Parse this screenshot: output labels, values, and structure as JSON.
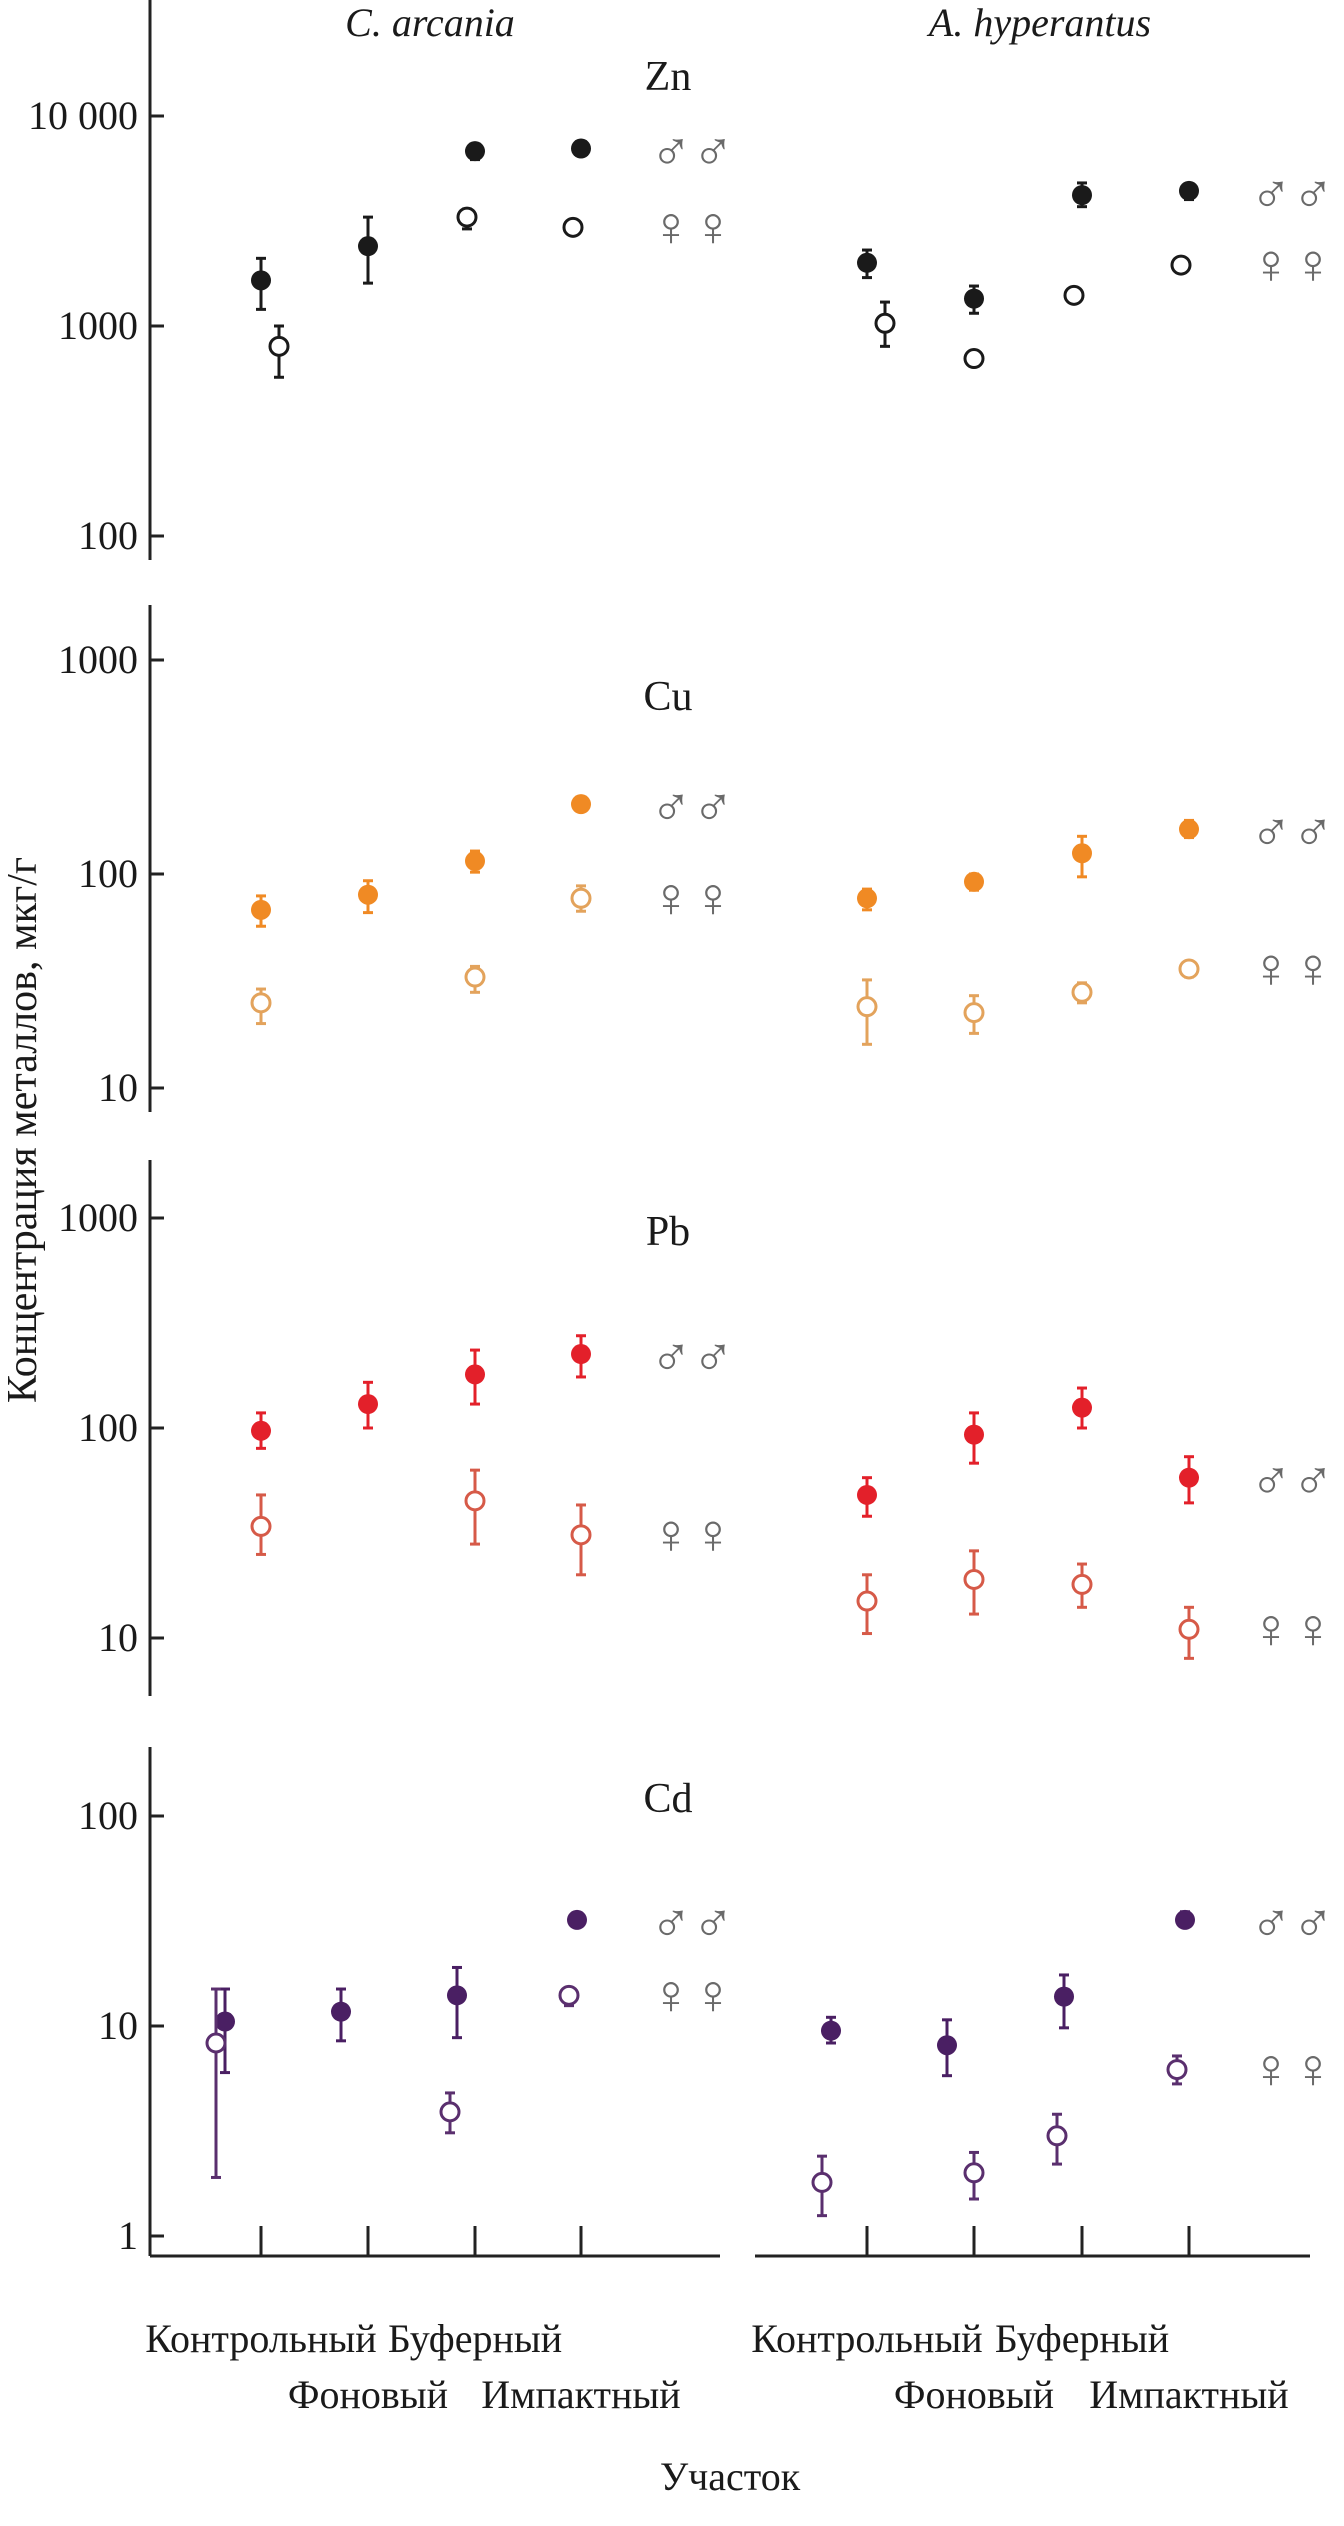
{
  "chart_data": {
    "type": "scatter",
    "title": "",
    "ylabel": "Концентрация металлов, мкг/г",
    "xlabel": "Участок",
    "yscale": "log",
    "species": [
      "C. arcania",
      "A. hyperantus"
    ],
    "categories": [
      "Контрольный",
      "Фоновый",
      "Буферный",
      "Импактный"
    ],
    "legend": {
      "male": "♂♂",
      "female": "♀♀",
      "placement": "right of each panel"
    },
    "panels": [
      {
        "element": "Zn",
        "ylim": [
          100,
          20000
        ],
        "ticks": [
          {
            "v": 10000,
            "label": "10 000"
          },
          {
            "v": 1000,
            "label": "1000"
          },
          {
            "v": 100,
            "label": "100"
          }
        ],
        "colors": {
          "male": "#1a1a1a",
          "female": "#1a1a1a"
        },
        "data": [
          {
            "male": [
              [
                1650,
                1200,
                2100
              ],
              [
                2400,
                1600,
                3300
              ],
              [
                6800,
                6200,
                7300
              ],
              [
                7000,
                6700,
                7200
              ]
            ],
            "female": [
              [
                800,
                570,
                1000
              ],
              null,
              [
                3300,
                2900,
                3600
              ],
              [
                2950,
                2750,
                3150
              ]
            ]
          },
          {
            "male": [
              [
                2000,
                1700,
                2300
              ],
              [
                1350,
                1150,
                1550
              ],
              [
                4200,
                3700,
                4800
              ],
              [
                4400,
                4000,
                4700
              ]
            ],
            "female": [
              [
                1030,
                800,
                1300
              ],
              [
                700,
                650,
                750
              ],
              [
                1400,
                1300,
                1500
              ],
              [
                1950,
                1850,
                2050
              ]
            ]
          }
        ]
      },
      {
        "element": "Cu",
        "ylim": [
          10,
          1500
        ],
        "ticks": [
          {
            "v": 1000,
            "label": "1000"
          },
          {
            "v": 100,
            "label": "100"
          },
          {
            "v": 10,
            "label": "10"
          }
        ],
        "colors": {
          "male": "#f08a24",
          "female": "#e3a35c"
        },
        "data": [
          {
            "male": [
              [
                68,
                57,
                79
              ],
              [
                80,
                66,
                93
              ],
              [
                115,
                102,
                128
              ],
              [
                212,
                205,
                220
              ]
            ],
            "female": [
              [
                25,
                20,
                29
              ],
              null,
              [
                33,
                28,
                37
              ],
              [
                77,
                67,
                88
              ]
            ]
          },
          {
            "male": [
              [
                77,
                68,
                85
              ],
              [
                92,
                84,
                100
              ],
              [
                125,
                97,
                150
              ],
              [
                162,
                148,
                178
              ]
            ],
            "female": [
              [
                24,
                16,
                32
              ],
              [
                22.5,
                18,
                27
              ],
              [
                28,
                25,
                31
              ],
              [
                36,
                33,
                39
              ]
            ]
          }
        ]
      },
      {
        "element": "Pb",
        "ylim": [
          5,
          1500
        ],
        "ticks": [
          {
            "v": 1000,
            "label": "1000"
          },
          {
            "v": 100,
            "label": "100"
          },
          {
            "v": 10,
            "label": "10"
          }
        ],
        "colors": {
          "male": "#e3202a",
          "female": "#d65a48"
        },
        "data": [
          {
            "male": [
              [
                97,
                80,
                118
              ],
              [
                130,
                100,
                165
              ],
              [
                180,
                130,
                235
              ],
              [
                225,
                175,
                275
              ]
            ],
            "female": [
              [
                34,
                25,
                48
              ],
              null,
              [
                45,
                28,
                63
              ],
              [
                31,
                20,
                43
              ]
            ]
          },
          {
            "male": [
              [
                48,
                38,
                58
              ],
              [
                93,
                68,
                118
              ],
              [
                125,
                100,
                155
              ],
              [
                58,
                44,
                73
              ]
            ],
            "female": [
              [
                15,
                10.5,
                20
              ],
              [
                19,
                13,
                26
              ],
              [
                18,
                14,
                22.5
              ],
              [
                11,
                8,
                14
              ]
            ]
          }
        ]
      },
      {
        "element": "Cd",
        "ylim": [
          0.5,
          200
        ],
        "ticks": [
          {
            "v": 100,
            "label": "100"
          },
          {
            "v": 10,
            "label": "10"
          },
          {
            "v": 1,
            "label": "1"
          }
        ],
        "colors": {
          "male": "#4a1f63",
          "female": "#5a2f6e"
        },
        "data": [
          {
            "male": [
              [
                10.5,
                6,
                15
              ],
              [
                11.7,
                8.5,
                15
              ],
              [
                14,
                8.8,
                19
              ],
              [
                32,
                30,
                34
              ]
            ],
            "female": [
              [
                8.3,
                1.9,
                15
              ],
              null,
              [
                3.9,
                3.1,
                4.8
              ],
              [
                14,
                12.5,
                15
              ]
            ]
          },
          {
            "male": [
              [
                9.5,
                8.3,
                11
              ],
              [
                8.1,
                5.8,
                10.7
              ],
              [
                13.8,
                9.8,
                17.5
              ],
              [
                32,
                30,
                35
              ]
            ],
            "female": [
              [
                1.8,
                1.25,
                2.4
              ],
              [
                2.0,
                1.5,
                2.5
              ],
              [
                3.0,
                2.2,
                3.8
              ],
              [
                6.2,
                5.3,
                7.2
              ]
            ]
          }
        ]
      }
    ]
  }
}
